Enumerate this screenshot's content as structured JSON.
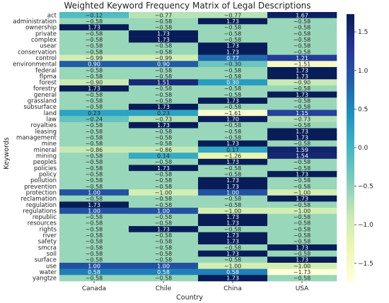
{
  "chart_data": {
    "type": "heatmap",
    "title": "Weighted Keyword Frequency Matrix of Legal Descriptions",
    "xlabel": "Country",
    "ylabel": "Keywords",
    "columns": [
      "Canada",
      "Chile",
      "China",
      "USA"
    ],
    "rows": [
      "act",
      "administration",
      "ownership",
      "private",
      "complex",
      "usear",
      "conservation",
      "control",
      "environmental",
      "federal",
      "flpma",
      "forest",
      "forestry",
      "general",
      "grassland",
      "subsurface",
      "land",
      "law",
      "royalties",
      "leasing",
      "management",
      "mine",
      "mineral",
      "mining",
      "peoples",
      "policies",
      "policy",
      "pollution",
      "prevention",
      "protection",
      "reclamation",
      "regulation",
      "regulations",
      "republic",
      "resources",
      "rights",
      "river",
      "safety",
      "smcra",
      "soil",
      "surface",
      "use",
      "water",
      "yangtze"
    ],
    "values": [
      [
        -0.12,
        -0.77,
        -0.77,
        1.67
      ],
      [
        -0.58,
        -0.58,
        1.73,
        -0.58
      ],
      [
        1.73,
        -0.58,
        -0.58,
        -0.58
      ],
      [
        -0.58,
        1.73,
        -0.58,
        -0.58
      ],
      [
        -0.58,
        1.73,
        -0.58,
        -0.58
      ],
      [
        -0.58,
        -0.58,
        1.73,
        -0.58
      ],
      [
        -0.58,
        -0.58,
        1.73,
        -0.58
      ],
      [
        -0.99,
        -0.99,
        0.77,
        1.21
      ],
      [
        0.9,
        0.9,
        -0.3,
        -1.51
      ],
      [
        -0.58,
        -0.58,
        -0.58,
        1.73
      ],
      [
        -0.58,
        -0.58,
        -0.58,
        1.73
      ],
      [
        -0.9,
        1.51,
        0.3,
        -0.9
      ],
      [
        1.73,
        -0.58,
        -0.58,
        -0.58
      ],
      [
        -0.58,
        -0.58,
        -0.58,
        1.73
      ],
      [
        -0.58,
        -0.58,
        1.73,
        -0.58
      ],
      [
        -0.58,
        1.73,
        -0.58,
        -0.58
      ],
      [
        0.23,
        0.23,
        -1.61,
        1.15
      ],
      [
        -0.24,
        -0.73,
        1.7,
        -0.73
      ],
      [
        -0.58,
        1.73,
        -0.58,
        -0.58
      ],
      [
        -0.58,
        -0.58,
        -0.58,
        1.73
      ],
      [
        -0.58,
        -0.58,
        -0.58,
        1.73
      ],
      [
        -0.58,
        -0.58,
        1.73,
        -0.58
      ],
      [
        -0.86,
        -0.86,
        0.17,
        1.59
      ],
      [
        -0.58,
        0.14,
        -1.26,
        1.54
      ],
      [
        -0.58,
        -0.58,
        1.73,
        -0.58
      ],
      [
        -0.58,
        1.73,
        -0.58,
        -0.58
      ],
      [
        -0.58,
        -0.58,
        -0.58,
        1.73
      ],
      [
        -0.58,
        -0.58,
        1.73,
        -0.58
      ],
      [
        -0.58,
        -0.58,
        1.73,
        -0.58
      ],
      [
        1.0,
        -1.0,
        1.0,
        -1.0
      ],
      [
        -0.58,
        -0.58,
        -0.58,
        1.73
      ],
      [
        1.73,
        -0.58,
        -0.58,
        -0.58
      ],
      [
        1.0,
        1.0,
        -1.0,
        -1.0
      ],
      [
        -0.58,
        -0.58,
        1.73,
        -0.58
      ],
      [
        -0.58,
        -0.58,
        1.73,
        -0.58
      ],
      [
        -0.58,
        1.73,
        -0.58,
        -0.58
      ],
      [
        -0.58,
        -0.58,
        1.73,
        -0.58
      ],
      [
        -0.58,
        -0.58,
        1.73,
        -0.58
      ],
      [
        -0.58,
        -0.58,
        -0.58,
        1.73
      ],
      [
        -0.58,
        -0.58,
        1.73,
        -0.58
      ],
      [
        -0.58,
        -0.58,
        -0.58,
        1.73
      ],
      [
        1.0,
        1.0,
        -1.0,
        -1.0
      ],
      [
        0.58,
        0.58,
        0.58,
        -1.73
      ],
      [
        -0.58,
        -0.58,
        1.73,
        -0.58
      ]
    ],
    "colorscale": "YlGnBu",
    "vlim": [
      -1.73,
      1.73
    ],
    "colorbar_ticks": [
      1.5,
      1.0,
      0.5,
      0.0,
      -0.5,
      -1.0,
      -1.5
    ],
    "colorbar_tick_labels": [
      "1.5",
      "1.0",
      "0.5",
      "0.0",
      "−0.5",
      "−1.0",
      "−1.5"
    ],
    "annotate": true,
    "grid": false
  }
}
